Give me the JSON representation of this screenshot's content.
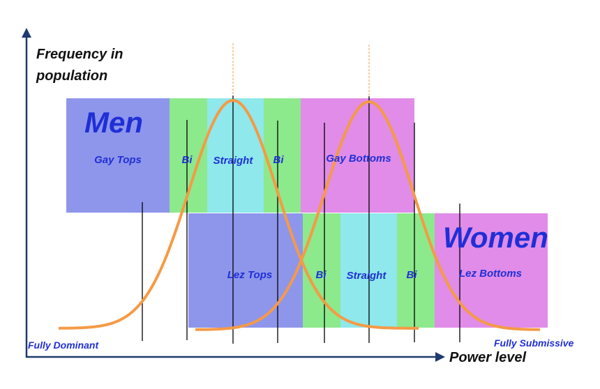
{
  "axes": {
    "y_title_line1": "Frequency in",
    "y_title_line2": "population",
    "x_title": "Power level",
    "x_left_label": "Fully Dominant",
    "x_right_label": "Fully Submissive"
  },
  "men": {
    "title": "Men",
    "segments": [
      {
        "label": "Gay Tops",
        "color": "#8e96ec"
      },
      {
        "label": "Bi",
        "color": "#8ce98c"
      },
      {
        "label": "Straight",
        "color": "#8ee8ec"
      },
      {
        "label": "Bi",
        "color": "#8ce98c"
      },
      {
        "label": "Gay Bottoms",
        "color": "#e08ce8"
      }
    ]
  },
  "women": {
    "title": "Women",
    "segments": [
      {
        "label": "Lez Tops",
        "color": "#8e96ec"
      },
      {
        "label": "Bi",
        "color": "#8ce98c"
      },
      {
        "label": "Straight",
        "color": "#8ee8ec"
      },
      {
        "label": "Bi",
        "color": "#8ce98c"
      },
      {
        "label": "Lez Bottoms",
        "color": "#e08ce8"
      }
    ]
  },
  "colors": {
    "curve": "#f59a45",
    "axis": "#1f3a6e",
    "text_blue": "#1f2fd6",
    "divider": "#000000"
  }
}
